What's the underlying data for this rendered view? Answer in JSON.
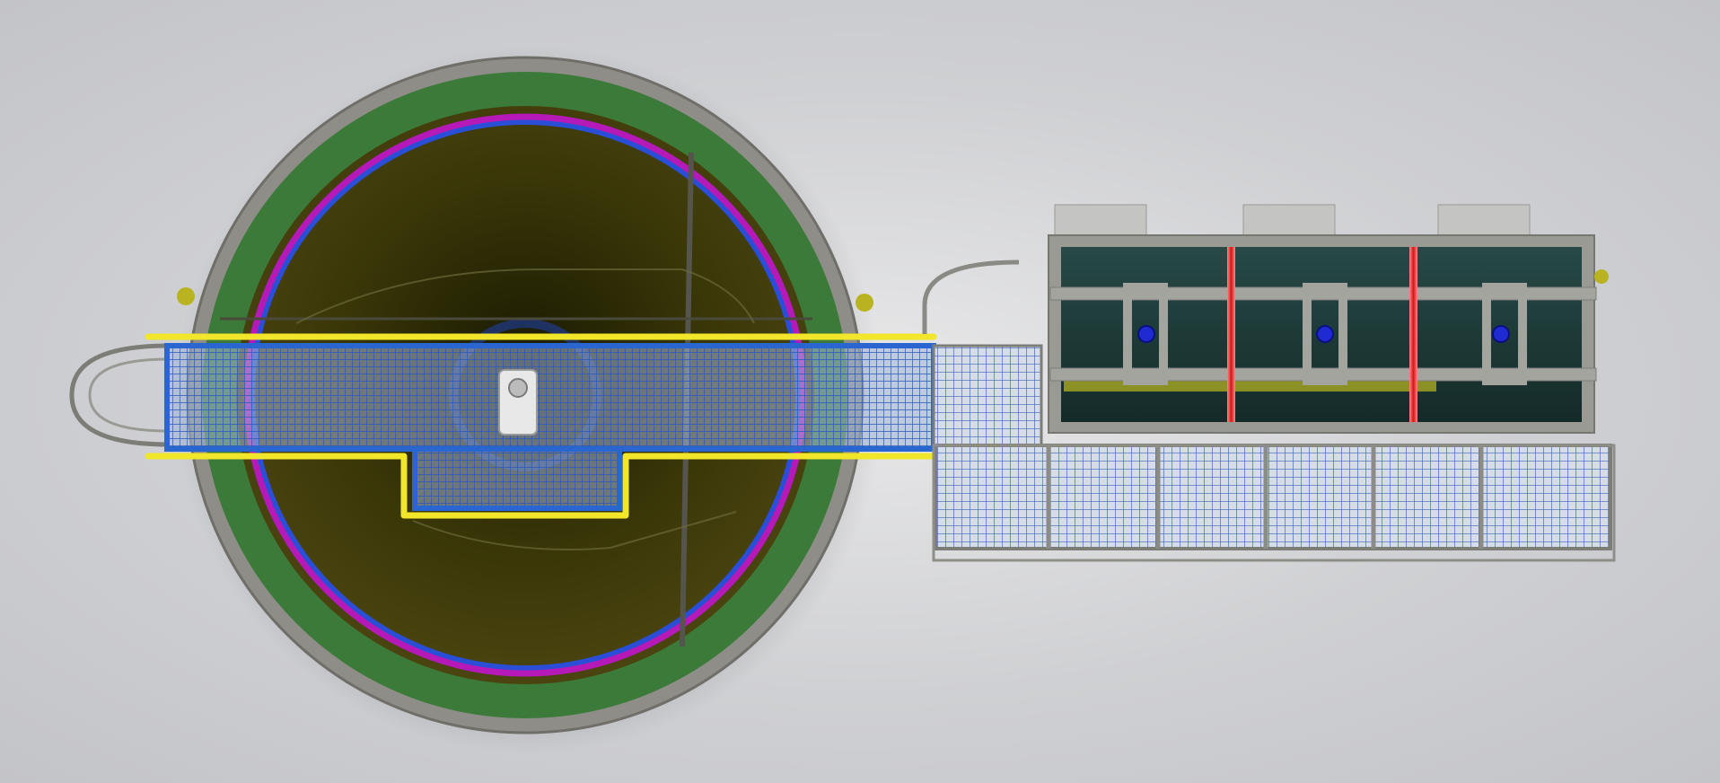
{
  "scene": {
    "kind": "3D render, top-down view of a water treatment unit: circular clarifier tank with bridge walkway, adjacent rectangular basin with grated platform",
    "colors": {
      "background": "#d6d7da",
      "concrete": "#8f8f8a",
      "tank_inner_ring": "#3f7a3a",
      "water": "#2a2a08",
      "weir_ring": "#b01ab5",
      "baffle_ring": "#2a4fd6",
      "walkway_frame": "#2a66d0",
      "handrail": "#f2e62a",
      "grating": "#8aa0c8",
      "drive_unit": "#f0f0f0",
      "basin_water": "#1c3633",
      "basin_wall": "#9a9a95",
      "pump_motor": "#1f2bd0",
      "divider_red": "#e02a2a",
      "pipe_yellow": "#d8d21e"
    },
    "parts": {
      "clarifier_tank": "circular-tank",
      "bridge": "bridge-walkway",
      "drive": "center-drive",
      "basin": "rectangular-basin",
      "platform": "grated-platform",
      "pumps": 3,
      "dividers": 2
    }
  }
}
